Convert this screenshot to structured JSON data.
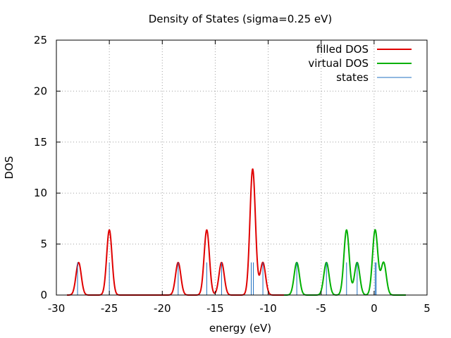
{
  "chart_data": {
    "type": "line",
    "title": "Density of States (sigma=0.25 eV)",
    "xlabel": "energy (eV)",
    "ylabel": "DOS",
    "xlim": [
      -30,
      5
    ],
    "ylim": [
      0,
      25
    ],
    "grid": true,
    "legend_position": "top-right",
    "x_ticks": [
      -30,
      -25,
      -20,
      -15,
      -10,
      -5,
      0,
      5
    ],
    "y_ticks": [
      0,
      5,
      10,
      15,
      20,
      25
    ],
    "x_tick_labels": [
      "-30",
      "-25",
      "-20",
      "-15",
      "-10",
      "-5",
      "0",
      "5"
    ],
    "y_tick_labels": [
      "0",
      "5",
      "10",
      "15",
      "20",
      "25"
    ],
    "sigma": 0.25,
    "x_range": [
      -29.0,
      3.0
    ],
    "series": [
      {
        "name": "filled DOS",
        "color": "#e00000",
        "peaks": [
          {
            "center": -27.9,
            "degeneracy": 2
          },
          {
            "center": -25.0,
            "degeneracy": 4
          },
          {
            "center": -18.5,
            "degeneracy": 2
          },
          {
            "center": -15.8,
            "degeneracy": 4
          },
          {
            "center": -14.4,
            "degeneracy": 2
          },
          {
            "center": -11.5,
            "degeneracy": 6,
            "secondary_degeneracy": 2,
            "secondary_offset": 0.15
          },
          {
            "center": -10.5,
            "degeneracy": 2
          }
        ]
      },
      {
        "name": "virtual DOS",
        "color": "#00b000",
        "peaks": [
          {
            "center": -7.3,
            "degeneracy": 2
          },
          {
            "center": -4.5,
            "degeneracy": 2
          },
          {
            "center": -2.6,
            "degeneracy": 4
          },
          {
            "center": -1.6,
            "degeneracy": 2
          },
          {
            "center": 0.1,
            "degeneracy": 4
          },
          {
            "center": 0.9,
            "degeneracy": 2
          }
        ]
      },
      {
        "name": "states",
        "color": "#2070c0",
        "type": "impulse",
        "height": 3.2,
        "positions": [
          -28.0,
          -25.0,
          -18.5,
          -15.8,
          -14.4,
          -11.6,
          -11.4,
          -10.5,
          -7.3,
          -4.5,
          -2.6,
          -1.6,
          0.1,
          0.2
        ]
      }
    ]
  }
}
